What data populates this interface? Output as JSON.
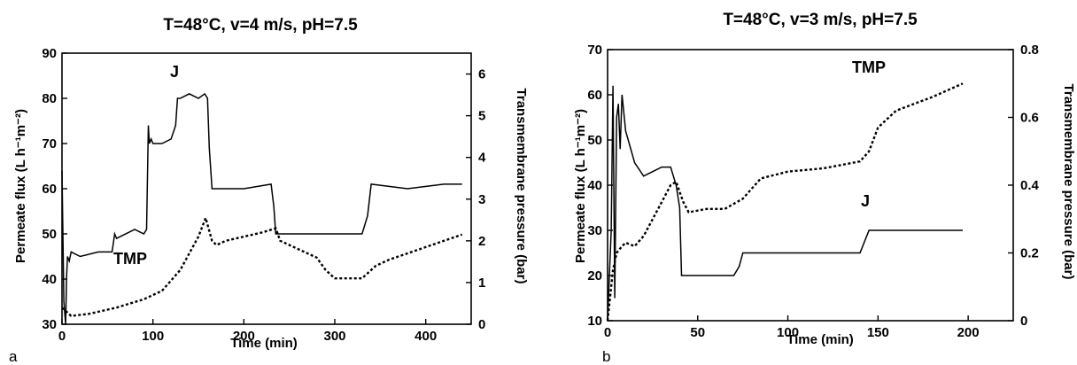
{
  "chart_data": [
    {
      "type": "line",
      "panel_label": "a",
      "title": "T=48°C, v=4 m/s, pH=7.5",
      "xlabel": "Time (min)",
      "ylabel": "Permeate flux  (L h⁻¹m⁻²)",
      "y2label": "Transmembrane pressure (bar)",
      "xlim": [
        0,
        450
      ],
      "ylim": [
        30,
        90
      ],
      "y2lim": [
        0,
        6.5
      ],
      "xticks": [
        0,
        100,
        200,
        300,
        400
      ],
      "yticks": [
        30,
        40,
        50,
        60,
        70,
        80,
        90
      ],
      "y2ticks": [
        0,
        1,
        2,
        3,
        4,
        5,
        6
      ],
      "grid": false,
      "series": [
        {
          "name": "J",
          "axis": "left",
          "style": "solid",
          "x": [
            0,
            2,
            4,
            5,
            6,
            8,
            10,
            20,
            40,
            55,
            58,
            60,
            80,
            90,
            93,
            95,
            96,
            98,
            100,
            110,
            120,
            125,
            127,
            130,
            140,
            150,
            157,
            160,
            162,
            165,
            200,
            230,
            233,
            235,
            260,
            300,
            330,
            336,
            340,
            380,
            420,
            440
          ],
          "values": [
            64,
            35,
            30,
            40,
            45,
            44,
            46,
            45,
            46,
            46,
            50,
            49,
            51,
            50,
            51,
            74,
            70,
            71,
            70,
            70,
            71,
            74,
            80,
            80,
            81,
            80,
            81,
            80,
            69,
            60,
            60,
            61,
            56,
            50,
            50,
            50,
            50,
            54,
            61,
            60,
            61,
            61
          ]
        },
        {
          "name": "TMP",
          "axis": "right",
          "style": "dotted",
          "x": [
            0,
            5,
            10,
            30,
            60,
            90,
            110,
            130,
            150,
            158,
            165,
            170,
            180,
            200,
            220,
            235,
            240,
            260,
            280,
            290,
            300,
            330,
            345,
            360,
            380,
            400,
            420,
            440
          ],
          "values": [
            0.4,
            0.3,
            0.2,
            0.25,
            0.4,
            0.6,
            0.8,
            1.3,
            2.1,
            2.55,
            2.0,
            1.9,
            2.0,
            2.1,
            2.2,
            2.3,
            2.0,
            1.8,
            1.6,
            1.3,
            1.1,
            1.1,
            1.4,
            1.55,
            1.7,
            1.85,
            2.0,
            2.15
          ]
        }
      ],
      "annotations": [
        "J",
        "TMP"
      ]
    },
    {
      "type": "line",
      "panel_label": "b",
      "title": "T=48°C, v=3 m/s, pH=7.5",
      "xlabel": "Time (min)",
      "ylabel": "Permeate flux  (L h⁻¹m⁻²)",
      "y2label": "Transmembrane pressure (bar)",
      "xlim": [
        0,
        225
      ],
      "ylim": [
        10,
        70
      ],
      "y2lim": [
        0,
        0.8
      ],
      "xticks": [
        0,
        50,
        100,
        150,
        200
      ],
      "yticks": [
        10,
        20,
        30,
        40,
        50,
        60,
        70
      ],
      "y2ticks": [
        0,
        0.2,
        0.4,
        0.6,
        0.8
      ],
      "grid": false,
      "series": [
        {
          "name": "J",
          "axis": "left",
          "style": "solid",
          "x": [
            0,
            2,
            3,
            4,
            5,
            6,
            7,
            8,
            10,
            15,
            20,
            25,
            30,
            35,
            38,
            40,
            41,
            45,
            55,
            70,
            73,
            75,
            90,
            120,
            140,
            143,
            145,
            170,
            197
          ],
          "values": [
            10,
            30,
            62,
            15,
            55,
            58,
            48,
            60,
            52,
            45,
            42,
            43,
            44,
            44,
            40,
            35,
            20,
            20,
            20,
            20,
            22,
            25,
            25,
            25,
            25,
            28,
            30,
            30,
            30
          ]
        },
        {
          "name": "TMP",
          "axis": "right",
          "style": "dotted",
          "x": [
            0,
            3,
            5,
            8,
            10,
            15,
            20,
            25,
            30,
            35,
            38,
            40,
            42,
            45,
            55,
            65,
            75,
            85,
            100,
            120,
            140,
            145,
            150,
            160,
            180,
            197
          ],
          "values": [
            0.0,
            0.15,
            0.2,
            0.22,
            0.23,
            0.22,
            0.25,
            0.3,
            0.35,
            0.4,
            0.41,
            0.38,
            0.35,
            0.32,
            0.33,
            0.33,
            0.36,
            0.42,
            0.44,
            0.45,
            0.47,
            0.5,
            0.57,
            0.62,
            0.66,
            0.7
          ]
        }
      ],
      "annotations": [
        "TMP",
        "J"
      ]
    }
  ]
}
